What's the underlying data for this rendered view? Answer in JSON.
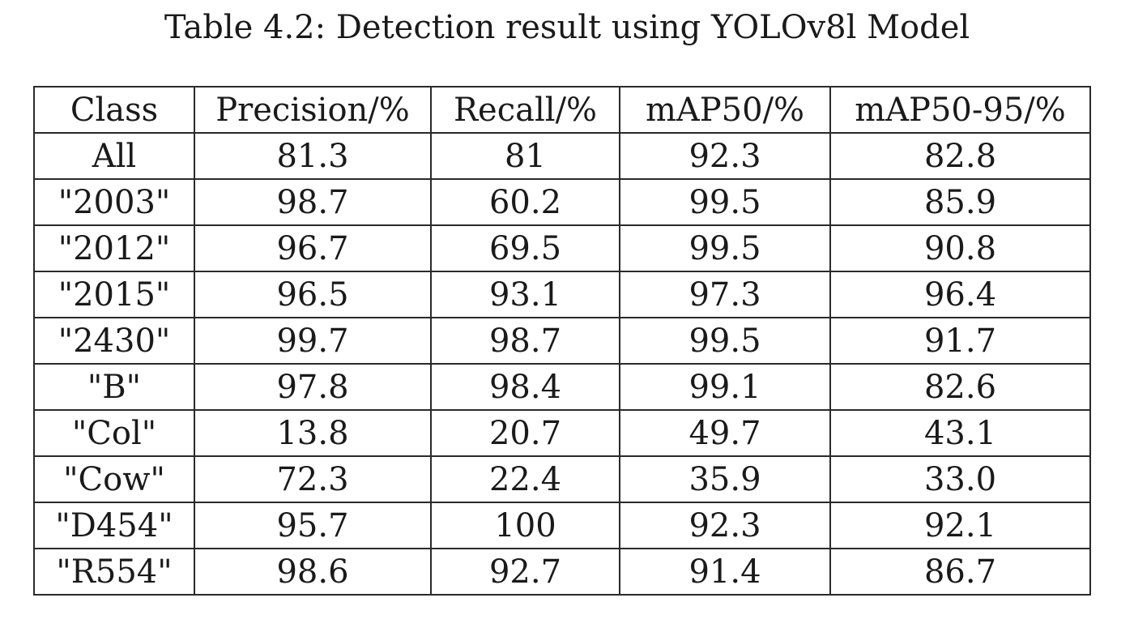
{
  "caption": "Table 4.2: Detection result using YOLOv8l Model",
  "columns": [
    "Class",
    "Precision/%",
    "Recall/%",
    "mAP50/%",
    "mAP50-95/%"
  ],
  "rows": [
    [
      "All",
      "81.3",
      "81",
      "92.3",
      "82.8"
    ],
    [
      "\"2003\"",
      "98.7",
      "60.2",
      "99.5",
      "85.9"
    ],
    [
      "\"2012\"",
      "96.7",
      "69.5",
      "99.5",
      "90.8"
    ],
    [
      "\"2015\"",
      "96.5",
      "93.1",
      "97.3",
      "96.4"
    ],
    [
      "\"2430\"",
      "99.7",
      "98.7",
      "99.5",
      "91.7"
    ],
    [
      "\"B\"",
      "97.8",
      "98.4",
      "99.1",
      "82.6"
    ],
    [
      "\"Col\"",
      "13.8",
      "20.7",
      "49.7",
      "43.1"
    ],
    [
      "\"Cow\"",
      "72.3",
      "22.4",
      "35.9",
      "33.0"
    ],
    [
      "\"D454\"",
      "95.7",
      "100",
      "92.3",
      "92.1"
    ],
    [
      "\"R554\"",
      "98.6",
      "92.7",
      "91.4",
      "86.7"
    ]
  ]
}
